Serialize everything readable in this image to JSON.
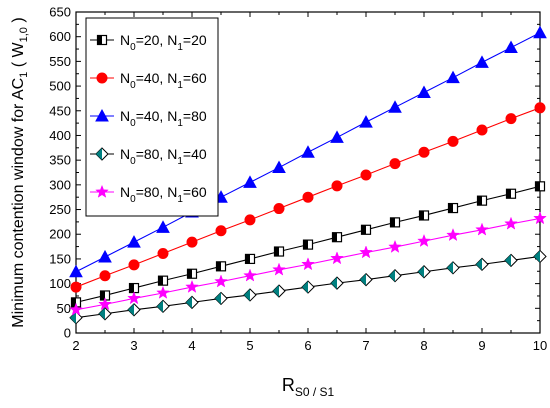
{
  "chart_data": {
    "type": "line",
    "xlabel": "R",
    "xlabel_sub": "S0 / S1",
    "ylabel": "Minimum contention window for AC",
    "ylabel_sub": "1",
    "ylabel_paren_open": " ( ",
    "ylabel_paren_var": "W",
    "ylabel_paren_sub": "1,0",
    "ylabel_paren_close": " )",
    "xlim": [
      2,
      10
    ],
    "ylim": [
      0,
      650
    ],
    "xticks": [
      2,
      3,
      4,
      5,
      6,
      7,
      8,
      9,
      10
    ],
    "yticks": [
      0,
      50,
      100,
      150,
      200,
      250,
      300,
      350,
      400,
      450,
      500,
      550,
      600,
      650
    ],
    "legend_position": "top-left",
    "x": [
      2,
      2.5,
      3,
      3.5,
      4,
      4.5,
      5,
      5.5,
      6,
      6.5,
      7,
      7.5,
      8,
      8.5,
      9,
      9.5,
      10
    ],
    "series": [
      {
        "name": "N0=20, N1=20",
        "label_parts": [
          "N",
          "0",
          "=20, N",
          "1",
          "=20"
        ],
        "marker": "half-square",
        "color": "#000000",
        "values": [
          62,
          76,
          91,
          106,
          120,
          135,
          150,
          165,
          179,
          194,
          209,
          224,
          238,
          253,
          268,
          282,
          297
        ]
      },
      {
        "name": "N0=40, N1=60",
        "label_parts": [
          "N",
          "0",
          "=40, N",
          "1",
          "=60"
        ],
        "marker": "circle",
        "color": "#ff0000",
        "values": [
          93,
          116,
          138,
          161,
          184,
          207,
          229,
          252,
          275,
          298,
          320,
          343,
          366,
          388,
          411,
          434,
          456
        ]
      },
      {
        "name": "N0=40, N1=80",
        "label_parts": [
          "N",
          "0",
          "=40, N",
          "1",
          "=80"
        ],
        "marker": "triangle",
        "color": "#0000ff",
        "values": [
          124,
          154,
          184,
          214,
          245,
          275,
          305,
          335,
          366,
          396,
          427,
          457,
          487,
          517,
          548,
          578,
          608
        ]
      },
      {
        "name": "N0=80, N1=40",
        "label_parts": [
          "N",
          "0",
          "=80, N",
          "1",
          "=40"
        ],
        "marker": "half-diamond",
        "color": "#008080",
        "values": [
          31,
          39,
          47,
          54,
          62,
          70,
          77,
          85,
          93,
          101,
          108,
          116,
          124,
          132,
          139,
          147,
          155
        ]
      },
      {
        "name": "N0=80, N1=60",
        "label_parts": [
          "N",
          "0",
          "=80, N",
          "1",
          "=60"
        ],
        "marker": "star",
        "color": "#ff00ff",
        "values": [
          47,
          58,
          70,
          81,
          93,
          104,
          116,
          128,
          139,
          151,
          163,
          174,
          186,
          198,
          209,
          221,
          232
        ]
      }
    ]
  }
}
